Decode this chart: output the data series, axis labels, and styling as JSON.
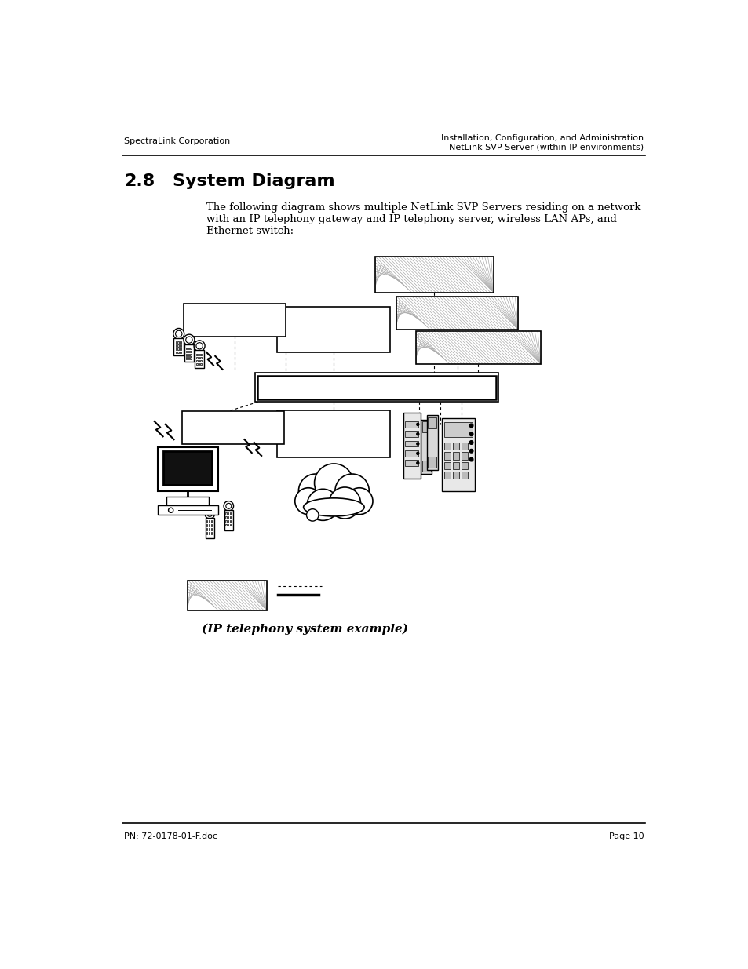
{
  "page_title_left": "SpectraLink Corporation",
  "page_title_right_line1": "Installation, Configuration, and Administration",
  "page_title_right_line2": "NetLink SVP Server (within IP environments)",
  "section_number": "2.8",
  "section_title": "System Diagram",
  "body_text_line1": "The following diagram shows multiple NetLink SVP Servers residing on a network",
  "body_text_line2": "with an IP telephony gateway and IP telephony server, wireless LAN APs, and",
  "body_text_line3": "Ethernet switch:",
  "caption": "(IP telephony system example)",
  "footer_left": "PN: 72-0178-01-F.doc",
  "footer_right": "Page 10",
  "bg_color": "#ffffff",
  "text_color": "#000000"
}
